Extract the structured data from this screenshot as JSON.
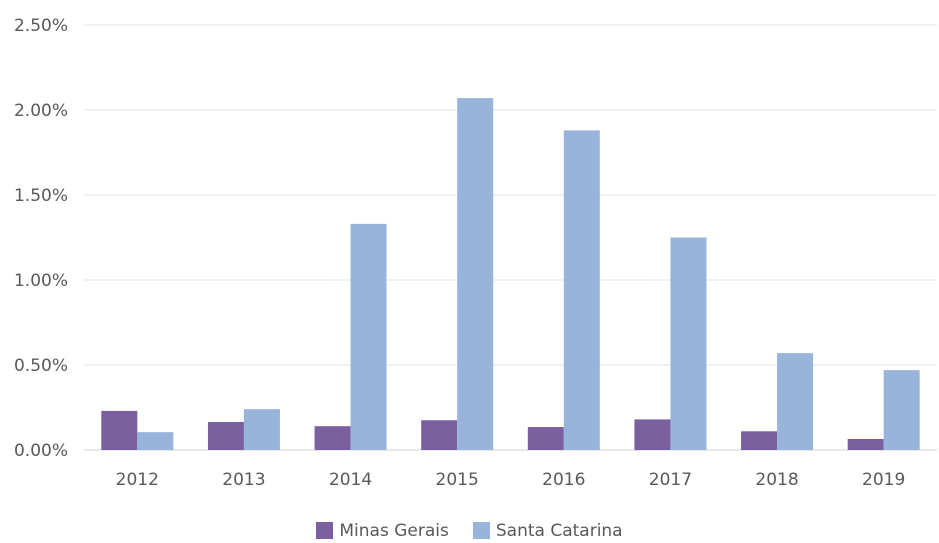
{
  "chart_data": {
    "type": "bar",
    "categories": [
      "2012",
      "2013",
      "2014",
      "2015",
      "2016",
      "2017",
      "2018",
      "2019"
    ],
    "series": [
      {
        "name": "Minas Gerais",
        "color": "#7b609f",
        "values": [
          0.23,
          0.165,
          0.14,
          0.175,
          0.135,
          0.18,
          0.11,
          0.065
        ]
      },
      {
        "name": "Santa Catarina",
        "color": "#98b4db",
        "values": [
          0.105,
          0.24,
          1.33,
          2.07,
          1.88,
          1.25,
          0.57,
          0.47
        ]
      }
    ],
    "y_ticks": [
      "0.00%",
      "0.50%",
      "1.00%",
      "1.50%",
      "2.00%",
      "2.50%"
    ],
    "ylim": [
      0,
      2.5
    ],
    "grid": true,
    "legend_position": "bottom"
  }
}
